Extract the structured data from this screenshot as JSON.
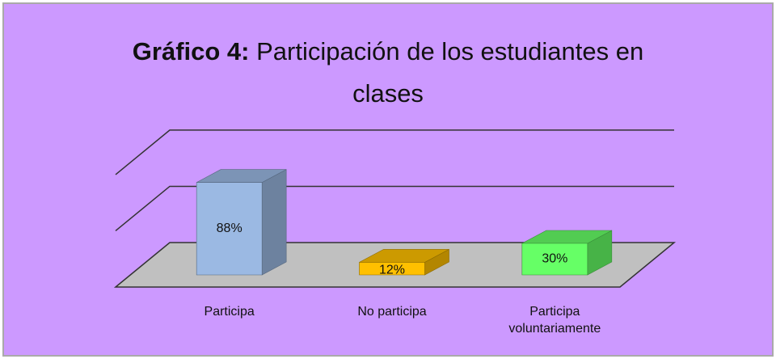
{
  "chart_data": {
    "type": "bar3d",
    "title_label": "Gráfico 4:",
    "title": "Participación de los estudiantes en clases",
    "categories": [
      "Participa",
      "No participa",
      "Participa voluntariamente"
    ],
    "values": [
      88,
      12,
      30
    ],
    "value_labels": [
      "88%",
      "12%",
      "30%"
    ],
    "colors": [
      "#9bb9e3",
      "#ffc000",
      "#66ff66"
    ],
    "ylim": [
      0,
      100
    ],
    "yticks": [
      0,
      50,
      100
    ],
    "grid": true,
    "background": "#cc99ff"
  }
}
